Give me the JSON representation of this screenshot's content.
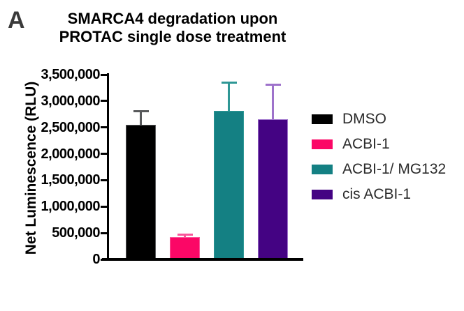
{
  "panel_label": "A",
  "title": {
    "line1": "SMARCA4 degradation upon",
    "line2": "PROTAC single dose treatment"
  },
  "chart_data": {
    "type": "bar",
    "title": "SMARCA4 degradation upon PROTAC single dose treatment",
    "xlabel": "",
    "ylabel": "Net Luminescence (RLU)",
    "ylim": [
      0,
      3500000
    ],
    "ytick_step": 500000,
    "ytick_labels": [
      "0",
      "500,000",
      "1,000,000",
      "1,500,000",
      "2,000,000",
      "2,500,000",
      "3,000,000",
      "3,500,000"
    ],
    "grid": false,
    "legend_position": "right",
    "categories": [
      "DMSO",
      "ACBI-1",
      "ACBI-1/ MG132",
      "cis ACBI-1"
    ],
    "values": [
      2550000,
      420000,
      2810000,
      2650000
    ],
    "errors": [
      280000,
      75000,
      560000,
      680000
    ],
    "error_style": "upper error bars with caps",
    "bar_colors": [
      "#000000",
      "#fb0766",
      "#148083",
      "#440383"
    ],
    "error_colors": [
      "#58595b",
      "#f9559a",
      "#2e9795",
      "#9e72cb"
    ],
    "axis_color": "#000000",
    "background_color": "#ffffff"
  }
}
